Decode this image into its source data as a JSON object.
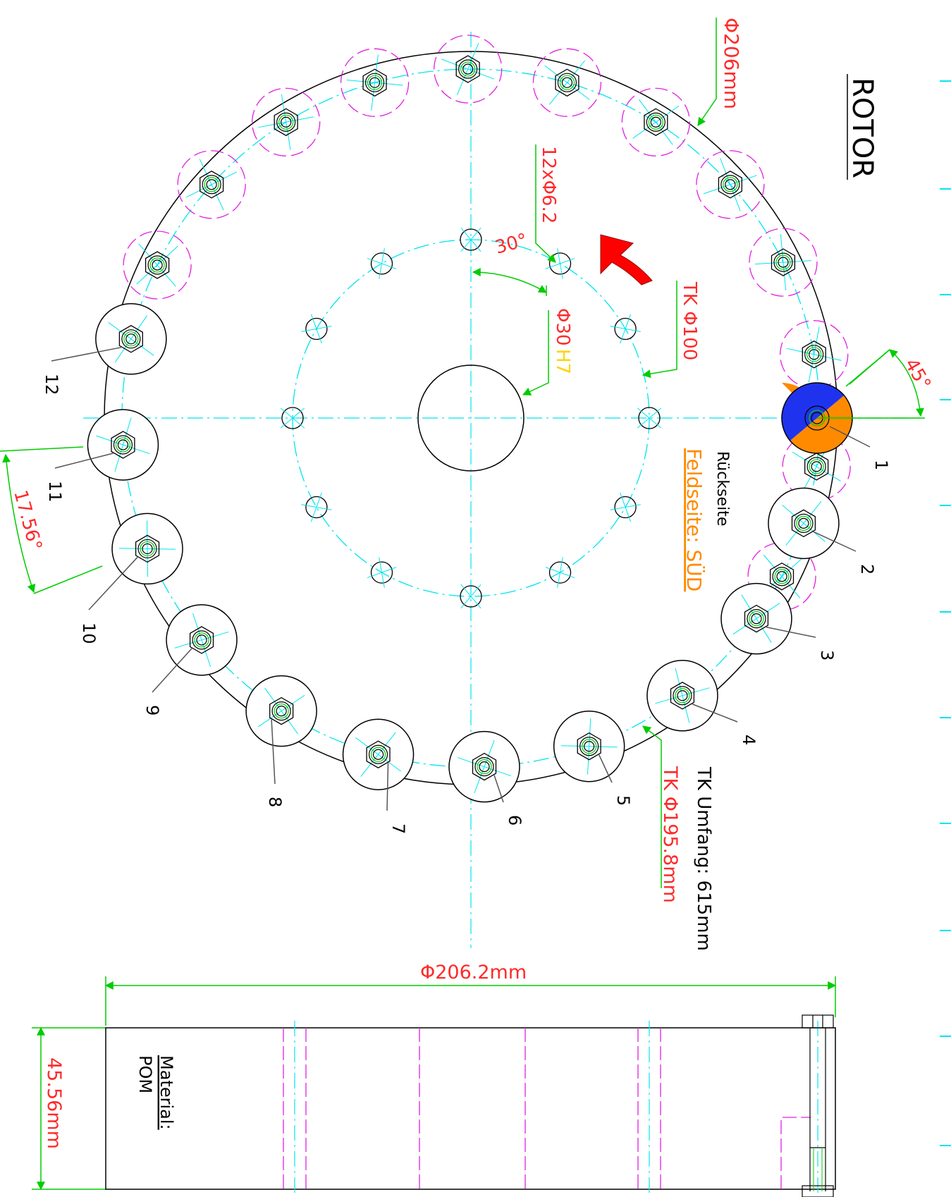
{
  "title": "ROTOR",
  "labels": {
    "outer_diameter": "Φ206mm",
    "hole_pattern": "12xΦ6.2",
    "angle_hole": "30°",
    "bore": "Φ30",
    "bore_fit": "H7",
    "inner_circle": "TK Φ100",
    "angle_marker": "45°",
    "back_side": "Rückseite",
    "field_side": "Feldseite: SÜD",
    "pitch_circle_outer": "TK Φ195.8mm",
    "circumference": "TK Umfang: 615mm",
    "angle_magnet": "17.56°",
    "side_width": "Φ206.2mm",
    "thickness": "45.56mm",
    "material_label": "Material:",
    "material_value": "POM"
  },
  "magnet_numbers": [
    "1",
    "2",
    "3",
    "4",
    "5",
    "6",
    "7",
    "8",
    "9",
    "10",
    "11",
    "12"
  ],
  "colors": {
    "dimension": "#ff2a2a",
    "center_line": "#00e5ee",
    "hidden_line": "#e020e0",
    "leader": "#00cc00",
    "outline": "#000000",
    "fit": "#ffd400",
    "field_side": "#ff8a00",
    "magnet_north": "#ff8a00",
    "magnet_south": "#1f33ee",
    "arrow": "#ff0000"
  },
  "icons": {
    "rotation": "rotation-arrow-icon"
  }
}
